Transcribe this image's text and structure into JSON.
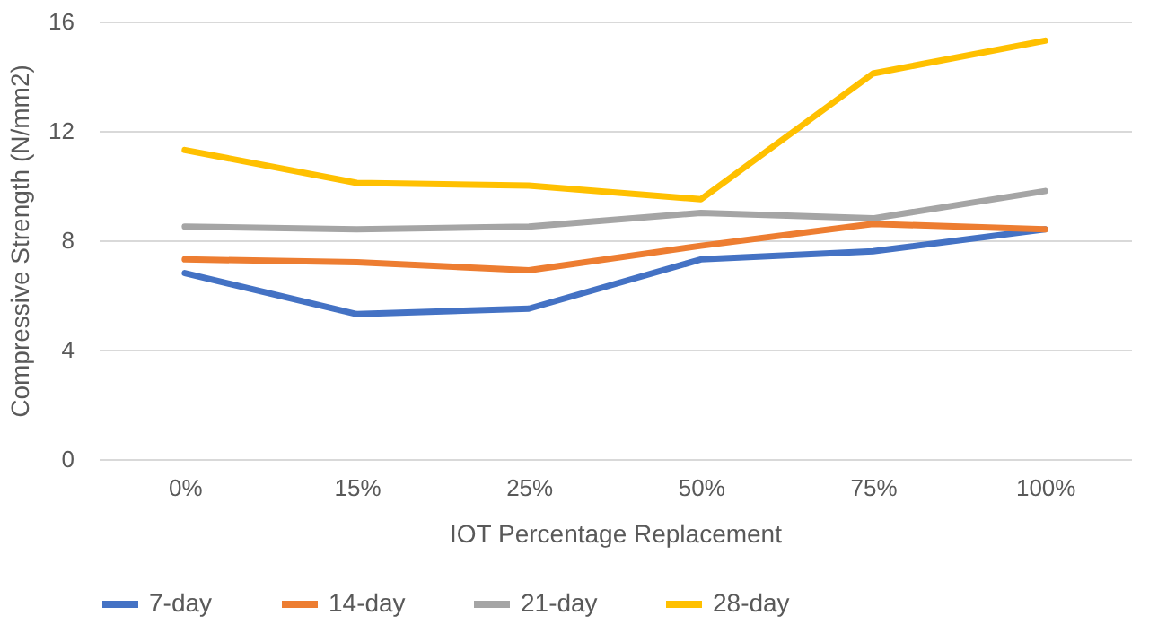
{
  "chart_data": {
    "type": "line",
    "xlabel": "IOT Percentage Replacement",
    "ylabel": "Compressive Strength (N/mm2)",
    "categories": [
      "0%",
      "15%",
      "25%",
      "50%",
      "75%",
      "100%"
    ],
    "series": [
      {
        "name": "7-day",
        "color": "#4472c4",
        "values": [
          6.8,
          5.3,
          5.5,
          7.3,
          7.6,
          8.4
        ]
      },
      {
        "name": "14-day",
        "color": "#ed7d31",
        "values": [
          7.3,
          7.2,
          6.9,
          7.8,
          8.6,
          8.4
        ]
      },
      {
        "name": "21-day",
        "color": "#a5a5a5",
        "values": [
          8.5,
          8.4,
          8.5,
          9.0,
          8.8,
          9.8
        ]
      },
      {
        "name": "28-day",
        "color": "#ffc000",
        "values": [
          11.3,
          10.1,
          10.0,
          9.5,
          14.1,
          15.3
        ]
      }
    ],
    "ylim": [
      0,
      16
    ],
    "yticks": [
      0,
      4,
      8,
      12,
      16
    ],
    "grid": "y",
    "legend": "bottom",
    "marker": "none",
    "line_style": "solid"
  }
}
